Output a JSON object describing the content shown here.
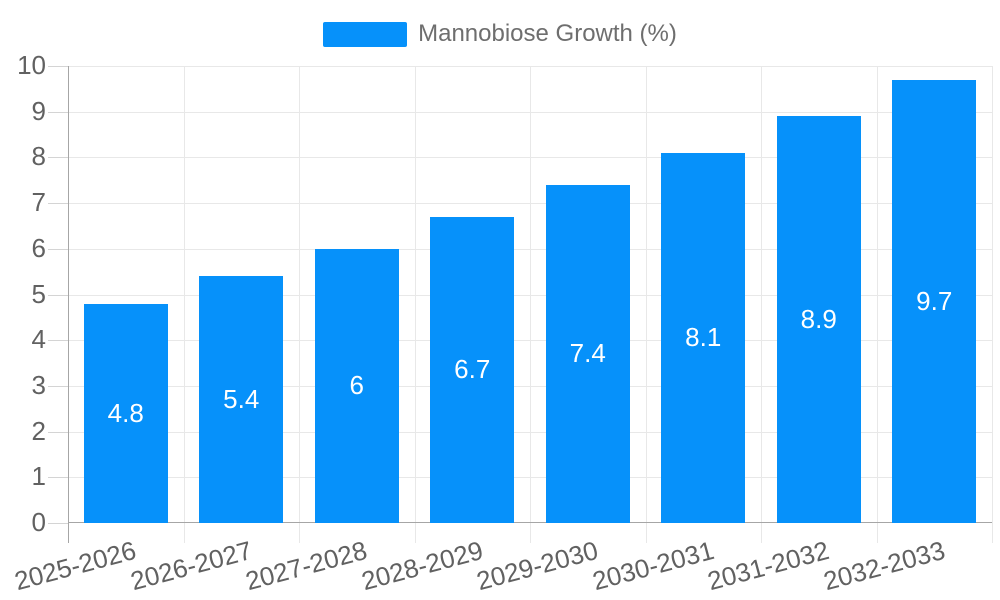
{
  "legend": {
    "items": [
      {
        "label": "Mannobiose Growth (%)",
        "color": "#0691fa"
      }
    ]
  },
  "chart_data": {
    "type": "bar",
    "title": "",
    "categories": [
      "2025-2026",
      "2026-2027",
      "2027-2028",
      "2028-2029",
      "2029-2030",
      "2030-2031",
      "2031-2032",
      "2032-2033"
    ],
    "series": [
      {
        "name": "Mannobiose Growth (%)",
        "values": [
          4.8,
          5.4,
          6,
          6.7,
          7.4,
          8.1,
          8.9,
          9.7
        ],
        "color": "#0691fa"
      }
    ],
    "data_labels": [
      "4.8",
      "5.4",
      "6",
      "6.7",
      "7.4",
      "8.1",
      "8.9",
      "9.7"
    ],
    "xlabel": "",
    "ylabel": "",
    "ylim": [
      0,
      10
    ],
    "yticks": [
      0,
      1,
      2,
      3,
      4,
      5,
      6,
      7,
      8,
      9,
      10
    ],
    "grid": true,
    "x_label_rotation_deg": -15,
    "legend_position": "top-center",
    "bar_label_color": "#ffffff",
    "axis_text_color": "#616161",
    "grid_color": "#e8e8e8",
    "tick_color": "#d4d4d4",
    "axis_line_color": "#a6a6a6",
    "background_color": "#ffffff"
  }
}
